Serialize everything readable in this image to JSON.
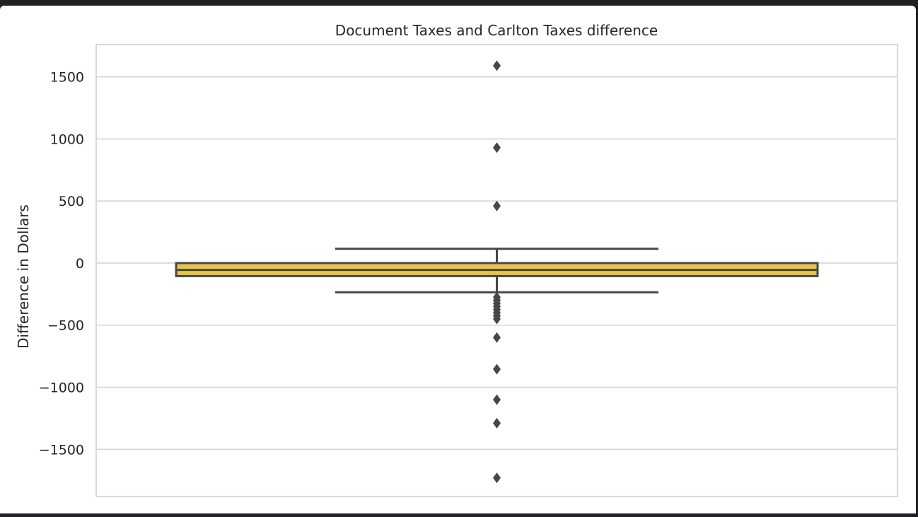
{
  "chart_data": {
    "type": "box",
    "title": "Document Taxes and Carlton Taxes difference",
    "xlabel": "",
    "ylabel": "Difference in Dollars",
    "ylim": [
      -1880,
      1760
    ],
    "yticks": [
      1500,
      1000,
      500,
      0,
      -500,
      -1000,
      -1500
    ],
    "ytick_labels": [
      "1500",
      "1000",
      "500",
      "0",
      "−500",
      "−1000",
      "−1500"
    ],
    "grid": true,
    "box": {
      "q1": -105,
      "median": -55,
      "q3": 0,
      "whisker_low": -235,
      "whisker_high": 115,
      "fill_color": "#e8c547",
      "line_color": "#474747"
    },
    "outliers": [
      1590,
      930,
      460,
      -275,
      -300,
      -325,
      -350,
      -375,
      -400,
      -425,
      -450,
      -600,
      -855,
      -1100,
      -1290,
      -1730
    ]
  }
}
